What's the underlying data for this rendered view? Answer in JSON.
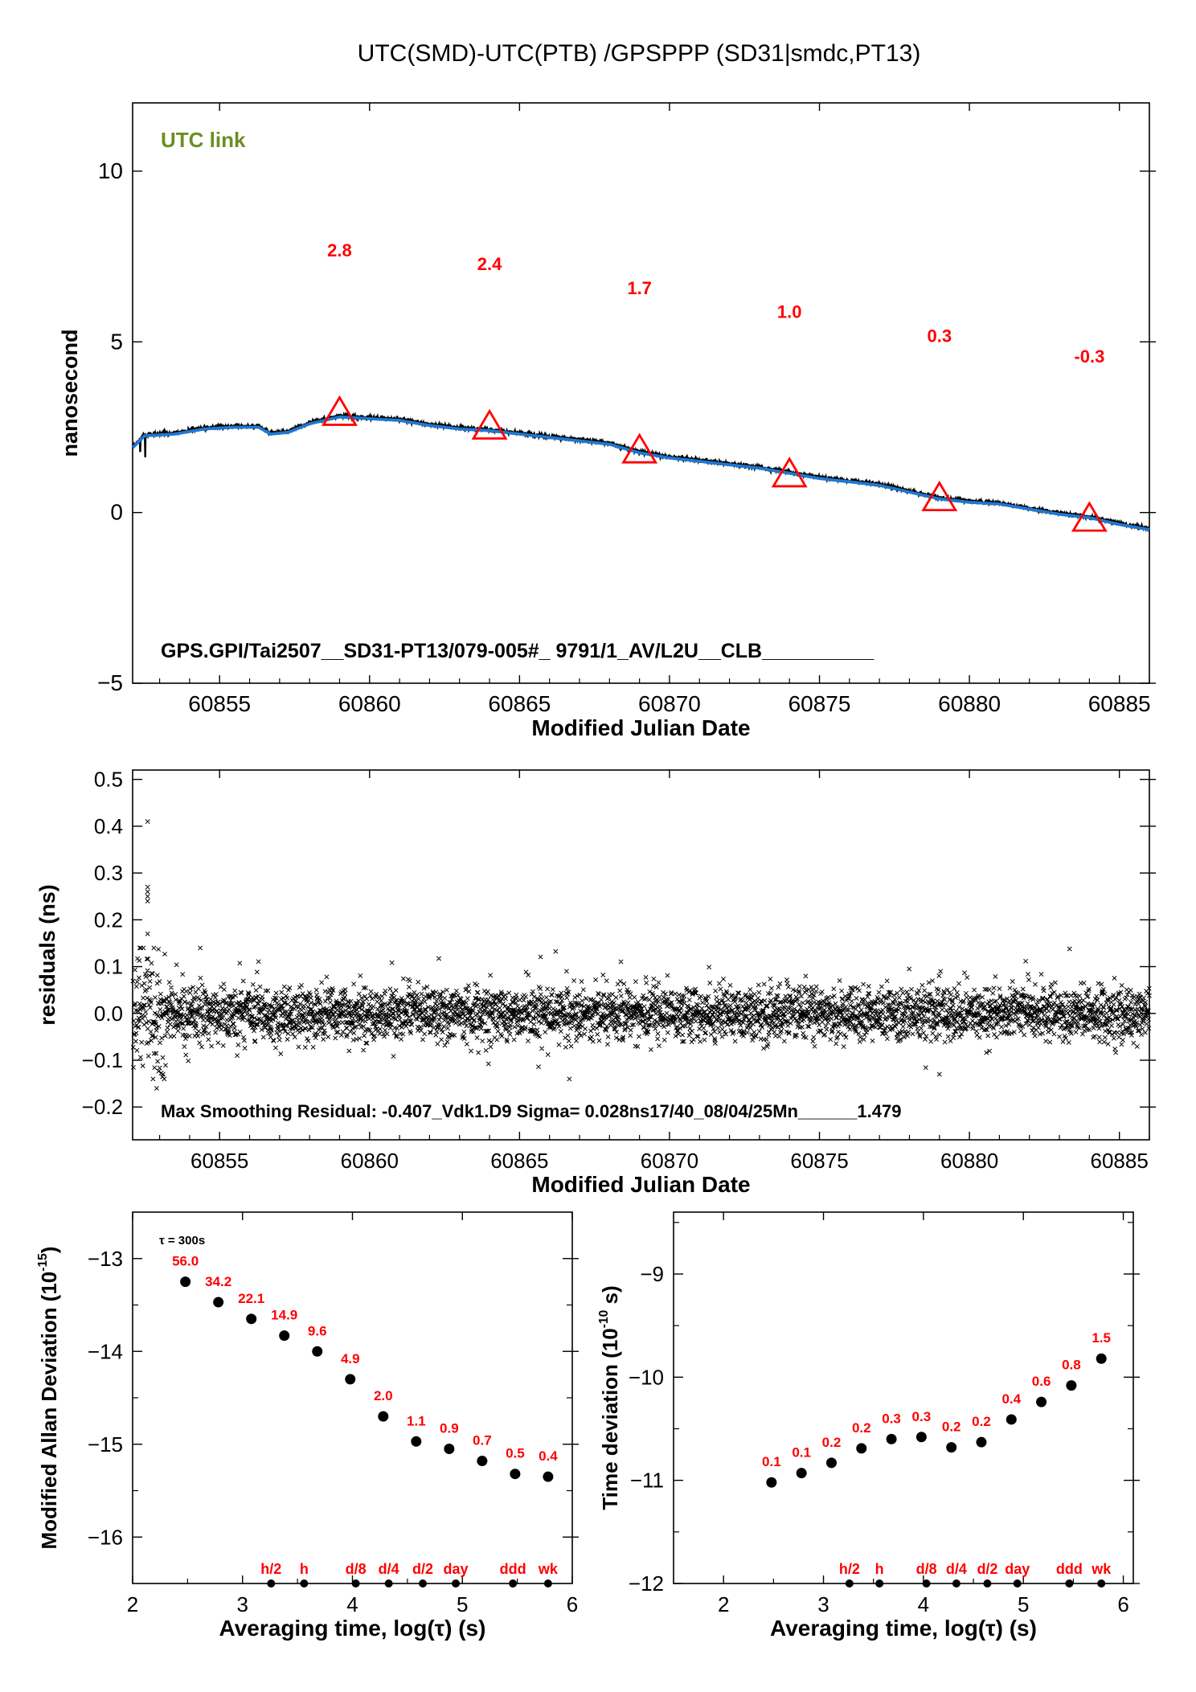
{
  "page_title": "UTC(SMD)-UTC(PTB)  /GPSPPP  (SD31|smdc,PT13)",
  "colors": {
    "marker_label": "#ff0000",
    "link_label": "#6b8e23",
    "smooth_line": "#1e78d0",
    "raw_points": "#000000"
  },
  "chart_data": [
    {
      "id": "link",
      "type": "line",
      "ylabel": "nanosecond",
      "xlabel": "Modified Julian Date",
      "xlim": [
        60852.1,
        60886.0
      ],
      "ylim": [
        -5,
        12
      ],
      "xticks": [
        60855,
        60860,
        60865,
        60870,
        60875,
        60880,
        60885
      ],
      "yticks": [
        -5,
        0,
        5,
        10
      ],
      "corner_label": "UTC link",
      "footer_text": "GPS.GPI/Tai2507__SD31-PT13/079-005#_  9791/1_AV/L2U__CLB__________",
      "smoothed_series": {
        "x": [
          60852.1,
          60852.5,
          60853.5,
          60854.5,
          60855.5,
          60856.3,
          60856.7,
          60857.3,
          60858.0,
          60859.0,
          60860.0,
          60861.0,
          60862.0,
          60863.0,
          60864.0,
          60865.0,
          60866.0,
          60867.0,
          60868.0,
          60869.0,
          60870.0,
          60871.0,
          60872.0,
          60873.0,
          60874.0,
          60875.0,
          60876.0,
          60877.0,
          60878.0,
          60879.0,
          60880.0,
          60881.0,
          60882.0,
          60883.0,
          60884.0,
          60885.0,
          60886.0
        ],
        "y": [
          1.9,
          2.25,
          2.3,
          2.45,
          2.5,
          2.5,
          2.3,
          2.35,
          2.6,
          2.8,
          2.75,
          2.7,
          2.55,
          2.45,
          2.4,
          2.3,
          2.2,
          2.1,
          2.0,
          1.75,
          1.6,
          1.5,
          1.4,
          1.3,
          1.15,
          1.0,
          0.9,
          0.8,
          0.6,
          0.4,
          0.3,
          0.25,
          0.1,
          -0.05,
          -0.15,
          -0.35,
          -0.5
        ]
      },
      "markers": [
        {
          "x": 60859,
          "y": 2.9,
          "label": "2.8",
          "label_y": 7.5
        },
        {
          "x": 60864,
          "y": 2.5,
          "label": "2.4",
          "label_y": 7.1
        },
        {
          "x": 60869,
          "y": 1.8,
          "label": "1.7",
          "label_y": 6.4
        },
        {
          "x": 60874,
          "y": 1.1,
          "label": "1.0",
          "label_y": 5.7
        },
        {
          "x": 60879,
          "y": 0.4,
          "label": "0.3",
          "label_y": 5.0
        },
        {
          "x": 60884,
          "y": -0.2,
          "label": "-0.3",
          "label_y": 4.4
        }
      ]
    },
    {
      "id": "residuals",
      "type": "scatter",
      "ylabel": "residuals (ns)",
      "xlabel": "Modified Julian Date",
      "xlim": [
        60852.1,
        60886.0
      ],
      "ylim": [
        -0.27,
        0.52
      ],
      "xticks": [
        60855,
        60860,
        60865,
        60870,
        60875,
        60880,
        60885
      ],
      "yticks": [
        -0.2,
        -0.1,
        0.0,
        0.1,
        0.2,
        0.3,
        0.4,
        0.5
      ],
      "ytick_labels": [
        "−0.2",
        "−0.1",
        "0.0",
        "0.1",
        "0.2",
        "0.3",
        "0.4",
        "0.5"
      ],
      "footer_text": "Max Smoothing Residual: -0.407_Vdk1.D9  Sigma= 0.028ns17/40_08/04/25Mn______1.479",
      "typical_spread": 0.028,
      "notable_points": [
        {
          "x": 60852.6,
          "y": 0.41
        },
        {
          "x": 60852.6,
          "y": 0.27
        },
        {
          "x": 60852.6,
          "y": 0.26
        },
        {
          "x": 60852.6,
          "y": 0.25
        },
        {
          "x": 60852.6,
          "y": 0.24
        },
        {
          "x": 60852.6,
          "y": 0.17
        },
        {
          "x": 60852.9,
          "y": -0.16
        },
        {
          "x": 60879.0,
          "y": -0.13
        }
      ]
    },
    {
      "id": "mdev",
      "type": "scatter",
      "ylabel": "Modified Allan Deviation (10^-15)",
      "ylabel_base": "Modified Allan Deviation (10",
      "ylabel_exp": "-15",
      "ylabel_tail": ")",
      "xlabel": "Averaging time, log(τ) (s)",
      "xlim": [
        2,
        6
      ],
      "ylim": [
        -16.5,
        -12.5
      ],
      "xticks": [
        2,
        3,
        4,
        5,
        6
      ],
      "yticks": [
        -16,
        -15,
        -14,
        -13
      ],
      "ytick_labels": [
        "−16",
        "−15",
        "−14",
        "−13"
      ],
      "tau_note": "τ = 300s",
      "points": [
        {
          "x": 2.48,
          "y": -13.25,
          "label": "56.0"
        },
        {
          "x": 2.78,
          "y": -13.47,
          "label": "34.2"
        },
        {
          "x": 3.08,
          "y": -13.65,
          "label": "22.1"
        },
        {
          "x": 3.38,
          "y": -13.83,
          "label": "14.9"
        },
        {
          "x": 3.68,
          "y": -14.0,
          "label": "9.6"
        },
        {
          "x": 3.98,
          "y": -14.3,
          "label": "4.9"
        },
        {
          "x": 4.28,
          "y": -14.7,
          "label": "2.0"
        },
        {
          "x": 4.58,
          "y": -14.97,
          "label": "1.1"
        },
        {
          "x": 4.88,
          "y": -15.05,
          "label": "0.9"
        },
        {
          "x": 5.18,
          "y": -15.18,
          "label": "0.7"
        },
        {
          "x": 5.48,
          "y": -15.32,
          "label": "0.5"
        },
        {
          "x": 5.78,
          "y": -15.35,
          "label": "0.4"
        }
      ],
      "period_marks": [
        {
          "x": 3.26,
          "label": "h/2"
        },
        {
          "x": 3.56,
          "label": "h"
        },
        {
          "x": 4.03,
          "label": "d/8"
        },
        {
          "x": 4.33,
          "label": "d/4"
        },
        {
          "x": 4.64,
          "label": "d/2"
        },
        {
          "x": 4.94,
          "label": "day"
        },
        {
          "x": 5.46,
          "label": "ddd"
        },
        {
          "x": 5.78,
          "label": "wk"
        }
      ]
    },
    {
      "id": "tdev",
      "type": "scatter",
      "ylabel": "Time deviation (10^-10 s)",
      "ylabel_base": "Time deviation (10",
      "ylabel_exp": "-10",
      "ylabel_tail": " s)",
      "xlabel": "Averaging time, log(τ) (s)",
      "xlim": [
        1.5,
        6.1
      ],
      "ylim": [
        -12,
        -8.4
      ],
      "xticks": [
        2,
        3,
        4,
        5,
        6
      ],
      "yticks": [
        -12,
        -11,
        -10,
        -9
      ],
      "ytick_labels": [
        "−12",
        "−11",
        "−10",
        "−9"
      ],
      "points": [
        {
          "x": 2.48,
          "y": -11.02,
          "label": "0.1"
        },
        {
          "x": 2.78,
          "y": -10.93,
          "label": "0.1"
        },
        {
          "x": 3.08,
          "y": -10.83,
          "label": "0.2"
        },
        {
          "x": 3.38,
          "y": -10.69,
          "label": "0.2"
        },
        {
          "x": 3.68,
          "y": -10.6,
          "label": "0.3"
        },
        {
          "x": 3.98,
          "y": -10.58,
          "label": "0.3"
        },
        {
          "x": 4.28,
          "y": -10.68,
          "label": "0.2"
        },
        {
          "x": 4.58,
          "y": -10.63,
          "label": "0.2"
        },
        {
          "x": 4.88,
          "y": -10.41,
          "label": "0.4"
        },
        {
          "x": 5.18,
          "y": -10.24,
          "label": "0.6"
        },
        {
          "x": 5.48,
          "y": -10.08,
          "label": "0.8"
        },
        {
          "x": 5.78,
          "y": -9.82,
          "label": "1.5"
        }
      ],
      "period_marks": [
        {
          "x": 3.26,
          "label": "h/2"
        },
        {
          "x": 3.56,
          "label": "h"
        },
        {
          "x": 4.03,
          "label": "d/8"
        },
        {
          "x": 4.33,
          "label": "d/4"
        },
        {
          "x": 4.64,
          "label": "d/2"
        },
        {
          "x": 4.94,
          "label": "day"
        },
        {
          "x": 5.46,
          "label": "ddd"
        },
        {
          "x": 5.78,
          "label": "wk"
        }
      ]
    }
  ]
}
